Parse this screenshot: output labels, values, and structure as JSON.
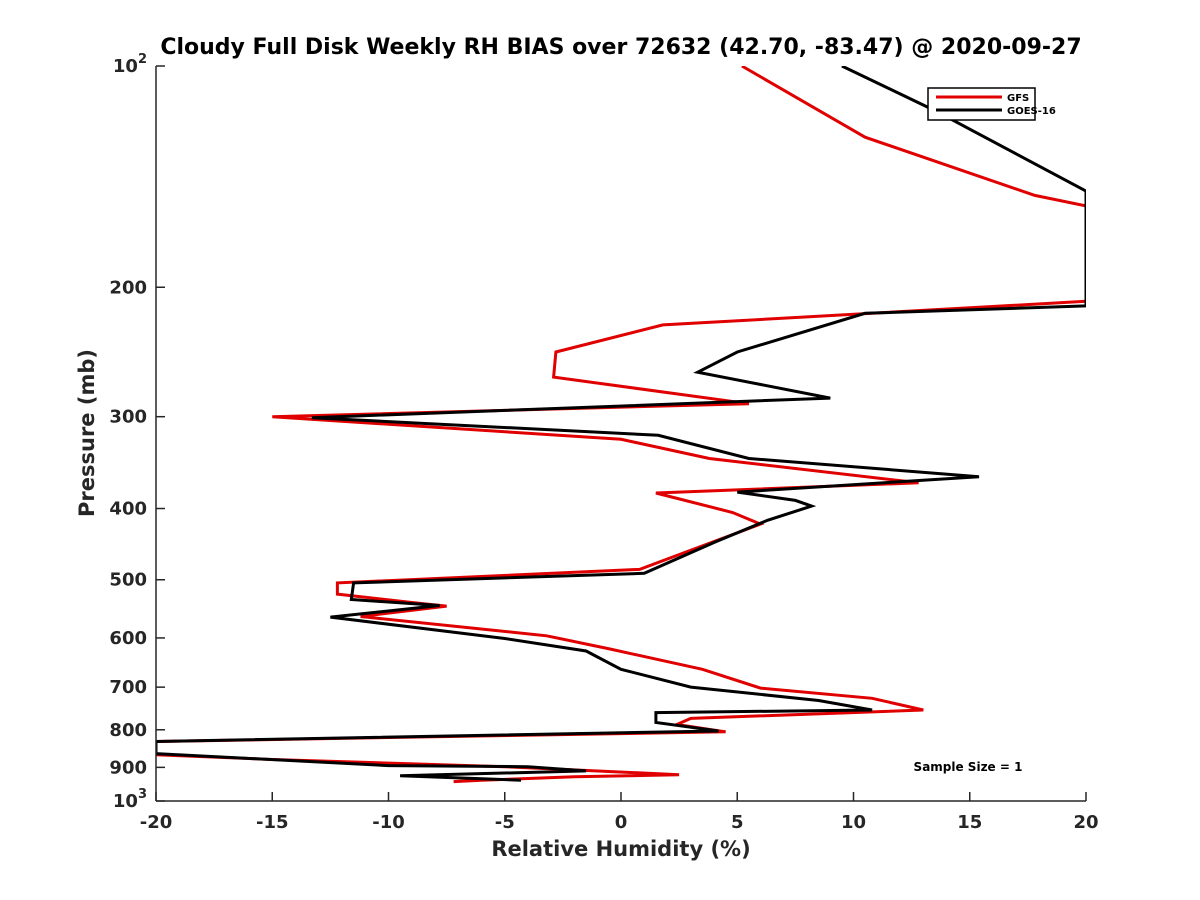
{
  "chart_data": {
    "type": "line",
    "title": "Cloudy Full Disk Weekly RH BIAS over 72632 (42.70, -83.47) @ 2020-09-27",
    "xlabel": "Relative Humidity (%)",
    "ylabel": "Pressure (mb)",
    "xlim": [
      -20,
      20
    ],
    "ylim": [
      100,
      1000
    ],
    "y_scale": "log",
    "y_reversed": true,
    "x_ticks": [
      -20,
      -15,
      -10,
      -5,
      0,
      5,
      10,
      15,
      20
    ],
    "x_tick_labels": [
      "-20",
      "-15",
      "-10",
      "-5",
      "0",
      "5",
      "10",
      "15",
      "20"
    ],
    "y_ticks": [
      100,
      200,
      300,
      400,
      500,
      600,
      700,
      800,
      900,
      1000
    ],
    "y_tick_labels": [
      {
        "base": "10",
        "exp": "2"
      },
      {
        "base": "200",
        "exp": ""
      },
      {
        "base": "300",
        "exp": ""
      },
      {
        "base": "400",
        "exp": ""
      },
      {
        "base": "500",
        "exp": ""
      },
      {
        "base": "600",
        "exp": ""
      },
      {
        "base": "700",
        "exp": ""
      },
      {
        "base": "800",
        "exp": ""
      },
      {
        "base": "900",
        "exp": ""
      },
      {
        "base": "10",
        "exp": "3"
      }
    ],
    "legend_position": "top-right",
    "annotation": "Sample Size = 1",
    "series": [
      {
        "name": "GFS",
        "color": "#e00000",
        "points": [
          [
            5.2,
            100
          ],
          [
            10.5,
            125
          ],
          [
            17.8,
            150
          ],
          [
            20.0,
            155
          ],
          [
            20.0,
            209
          ],
          [
            1.8,
            225
          ],
          [
            -2.8,
            245
          ],
          [
            -2.9,
            265
          ],
          [
            5.5,
            288
          ],
          [
            -15.0,
            300
          ],
          [
            0.0,
            322
          ],
          [
            3.8,
            342
          ],
          [
            12.8,
            369
          ],
          [
            1.5,
            381
          ],
          [
            4.8,
            405
          ],
          [
            6.0,
            420
          ],
          [
            0.8,
            484
          ],
          [
            -12.2,
            505
          ],
          [
            -12.2,
            523
          ],
          [
            -9.0,
            537
          ],
          [
            -7.5,
            543
          ],
          [
            -11.2,
            561
          ],
          [
            -3.2,
            596
          ],
          [
            -0.5,
            621
          ],
          [
            3.5,
            662
          ],
          [
            6.0,
            702
          ],
          [
            10.8,
            725
          ],
          [
            13.0,
            752
          ],
          [
            3.0,
            772
          ],
          [
            2.4,
            787
          ],
          [
            4.5,
            805
          ],
          [
            -20.0,
            830
          ],
          [
            -20.0,
            865
          ],
          [
            -15.0,
            878
          ],
          [
            -5.0,
            898
          ],
          [
            2.5,
            921
          ],
          [
            -2.0,
            927
          ],
          [
            -6.0,
            937
          ],
          [
            -7.2,
            941
          ]
        ]
      },
      {
        "name": "GOES-16",
        "color": "#000000",
        "points": [
          [
            9.5,
            100
          ],
          [
            13.5,
            115
          ],
          [
            20.0,
            148
          ],
          [
            20.0,
            212
          ],
          [
            10.5,
            217
          ],
          [
            5.0,
            245
          ],
          [
            3.3,
            261
          ],
          [
            9.0,
            283
          ],
          [
            -13.3,
            301
          ],
          [
            1.6,
            318
          ],
          [
            5.5,
            342
          ],
          [
            15.4,
            362
          ],
          [
            5.0,
            380
          ],
          [
            7.5,
            390
          ],
          [
            8.2,
            397
          ],
          [
            6.3,
            415
          ],
          [
            4.0,
            445
          ],
          [
            1.0,
            490
          ],
          [
            -11.5,
            505
          ],
          [
            -11.6,
            532
          ],
          [
            -7.8,
            542
          ],
          [
            -12.5,
            562
          ],
          [
            -5.0,
            601
          ],
          [
            -1.5,
            625
          ],
          [
            0.0,
            662
          ],
          [
            3.0,
            700
          ],
          [
            8.5,
            730
          ],
          [
            10.8,
            752
          ],
          [
            1.5,
            758
          ],
          [
            1.5,
            782
          ],
          [
            4.2,
            803
          ],
          [
            -20.0,
            830
          ],
          [
            -20.0,
            862
          ],
          [
            -10.0,
            895
          ],
          [
            -4.0,
            898
          ],
          [
            -1.5,
            910
          ],
          [
            -9.5,
            924
          ],
          [
            -4.3,
            937
          ]
        ]
      }
    ]
  }
}
